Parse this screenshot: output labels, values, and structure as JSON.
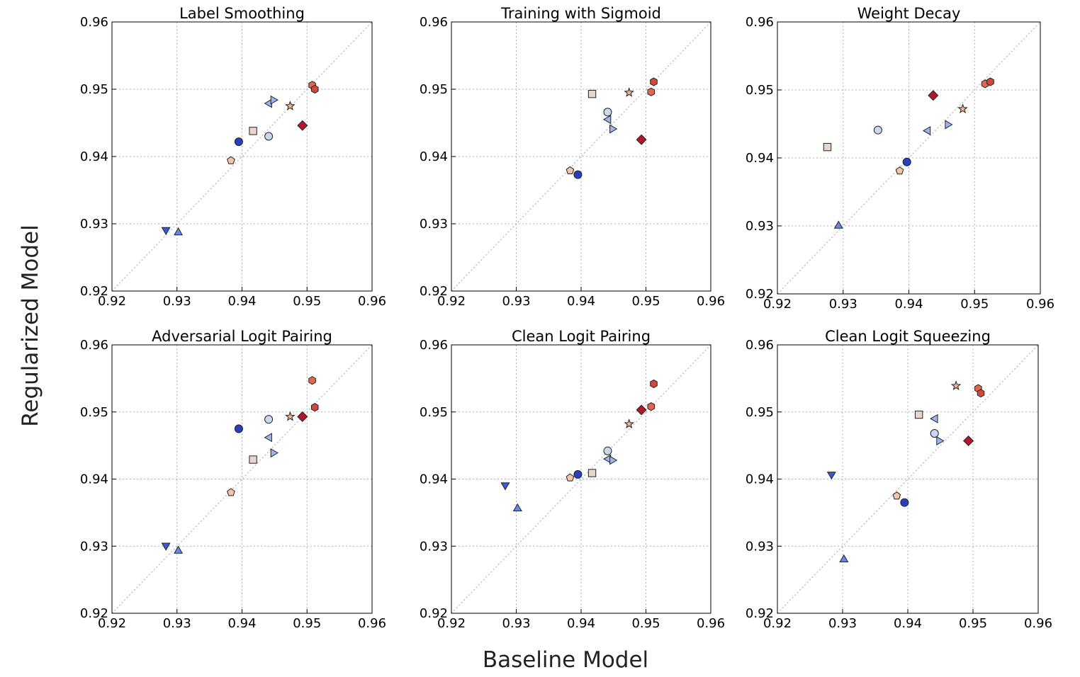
{
  "figure": {
    "xlabel": "Baseline Model",
    "ylabel": "Regularized Model"
  },
  "chart_data": [
    {
      "type": "scatter",
      "title": "Label Smoothing",
      "xlim": [
        0.92,
        0.96
      ],
      "ylim": [
        0.92,
        0.96
      ],
      "xticks": [
        "0.92",
        "0.93",
        "0.94",
        "0.95",
        "0.96"
      ],
      "yticks": [
        "0.92",
        "0.93",
        "0.94",
        "0.95",
        "0.96"
      ],
      "grid": true,
      "reference_line": "y = x",
      "points": [
        {
          "x": 0.9283,
          "y": 0.929,
          "marker": "triangle-down",
          "color": "#3b5bd6"
        },
        {
          "x": 0.9302,
          "y": 0.9288,
          "marker": "triangle-up",
          "color": "#6688e8"
        },
        {
          "x": 0.9383,
          "y": 0.9394,
          "marker": "pentagon",
          "color": "#f3c4a8"
        },
        {
          "x": 0.9395,
          "y": 0.9422,
          "marker": "circle",
          "color": "#2a3fc0"
        },
        {
          "x": 0.9417,
          "y": 0.9438,
          "marker": "square",
          "color": "#e8d6cc"
        },
        {
          "x": 0.9441,
          "y": 0.943,
          "marker": "circle",
          "color": "#c9d8f0"
        },
        {
          "x": 0.9441,
          "y": 0.9479,
          "marker": "triangle-left",
          "color": "#9db6f0"
        },
        {
          "x": 0.9449,
          "y": 0.9484,
          "marker": "triangle-right",
          "color": "#9db6f0"
        },
        {
          "x": 0.9474,
          "y": 0.9475,
          "marker": "star",
          "color": "#f0b592"
        },
        {
          "x": 0.9493,
          "y": 0.9446,
          "marker": "diamond",
          "color": "#b2182b"
        },
        {
          "x": 0.9508,
          "y": 0.9506,
          "marker": "hexagon",
          "color": "#e06850"
        },
        {
          "x": 0.9512,
          "y": 0.95,
          "marker": "hexagon",
          "color": "#d04a3c"
        }
      ]
    },
    {
      "type": "scatter",
      "title": "Training with Sigmoid",
      "xlim": [
        0.92,
        0.96
      ],
      "ylim": [
        0.92,
        0.96
      ],
      "xticks": [
        "0.92",
        "0.93",
        "0.94",
        "0.95",
        "0.96"
      ],
      "yticks": [
        "0.92",
        "0.93",
        "0.94",
        "0.95",
        "0.96"
      ],
      "grid": true,
      "reference_line": "y = x",
      "points": [
        {
          "x": 0.9383,
          "y": 0.9379,
          "marker": "pentagon",
          "color": "#f3c4a8"
        },
        {
          "x": 0.9395,
          "y": 0.9373,
          "marker": "circle",
          "color": "#2a3fc0"
        },
        {
          "x": 0.9417,
          "y": 0.9493,
          "marker": "square",
          "color": "#e8d6cc"
        },
        {
          "x": 0.9441,
          "y": 0.9466,
          "marker": "circle",
          "color": "#c9d8f0"
        },
        {
          "x": 0.9441,
          "y": 0.9455,
          "marker": "triangle-left",
          "color": "#9db6f0"
        },
        {
          "x": 0.9449,
          "y": 0.9441,
          "marker": "triangle-right",
          "color": "#9db6f0"
        },
        {
          "x": 0.9474,
          "y": 0.9495,
          "marker": "star",
          "color": "#f0b592"
        },
        {
          "x": 0.9493,
          "y": 0.9425,
          "marker": "diamond",
          "color": "#b2182b"
        },
        {
          "x": 0.9508,
          "y": 0.9496,
          "marker": "hexagon",
          "color": "#e06850"
        },
        {
          "x": 0.9512,
          "y": 0.9511,
          "marker": "hexagon",
          "color": "#d04a3c"
        }
      ]
    },
    {
      "type": "scatter",
      "title": "Weight Decay",
      "xlim": [
        0.92,
        0.96
      ],
      "ylim": [
        0.92,
        0.96
      ],
      "xticks": [
        "0.92",
        "0.93",
        "0.94",
        "0.95",
        "0.96"
      ],
      "yticks": [
        "0.92",
        "0.93",
        "0.94",
        "0.95",
        "0.96"
      ],
      "grid": true,
      "reference_line": "y = x",
      "points": [
        {
          "x": 0.9276,
          "y": 0.9416,
          "marker": "square",
          "color": "#e8d6cc"
        },
        {
          "x": 0.9293,
          "y": 0.9301,
          "marker": "triangle-up",
          "color": "#6688e8"
        },
        {
          "x": 0.9353,
          "y": 0.9441,
          "marker": "circle",
          "color": "#c9d8f0"
        },
        {
          "x": 0.9386,
          "y": 0.9381,
          "marker": "pentagon",
          "color": "#f3c4a8"
        },
        {
          "x": 0.9397,
          "y": 0.9394,
          "marker": "circle",
          "color": "#2a3fc0"
        },
        {
          "x": 0.9428,
          "y": 0.944,
          "marker": "triangle-left",
          "color": "#9db6f0"
        },
        {
          "x": 0.9437,
          "y": 0.9492,
          "marker": "diamond",
          "color": "#b2182b"
        },
        {
          "x": 0.946,
          "y": 0.9449,
          "marker": "triangle-right",
          "color": "#9db6f0"
        },
        {
          "x": 0.9482,
          "y": 0.9472,
          "marker": "star",
          "color": "#f0b592"
        },
        {
          "x": 0.9516,
          "y": 0.9509,
          "marker": "hexagon",
          "color": "#e06850"
        },
        {
          "x": 0.9524,
          "y": 0.9512,
          "marker": "hexagon",
          "color": "#d04a3c"
        }
      ]
    },
    {
      "type": "scatter",
      "title": "Adversarial Logit Pairing",
      "xlim": [
        0.92,
        0.96
      ],
      "ylim": [
        0.92,
        0.96
      ],
      "xticks": [
        "0.92",
        "0.93",
        "0.94",
        "0.95",
        "0.96"
      ],
      "yticks": [
        "0.92",
        "0.93",
        "0.94",
        "0.95",
        "0.96"
      ],
      "grid": true,
      "reference_line": "y = x",
      "points": [
        {
          "x": 0.9283,
          "y": 0.93,
          "marker": "triangle-down",
          "color": "#3b5bd6"
        },
        {
          "x": 0.9302,
          "y": 0.9294,
          "marker": "triangle-up",
          "color": "#6688e8"
        },
        {
          "x": 0.9383,
          "y": 0.938,
          "marker": "pentagon",
          "color": "#f3c4a8"
        },
        {
          "x": 0.9395,
          "y": 0.9475,
          "marker": "circle",
          "color": "#2a3fc0"
        },
        {
          "x": 0.9417,
          "y": 0.9429,
          "marker": "square",
          "color": "#e8d6cc"
        },
        {
          "x": 0.9441,
          "y": 0.9489,
          "marker": "circle",
          "color": "#c9d8f0"
        },
        {
          "x": 0.9441,
          "y": 0.9462,
          "marker": "triangle-left",
          "color": "#9db6f0"
        },
        {
          "x": 0.9449,
          "y": 0.9439,
          "marker": "triangle-right",
          "color": "#9db6f0"
        },
        {
          "x": 0.9474,
          "y": 0.9493,
          "marker": "star",
          "color": "#f0b592"
        },
        {
          "x": 0.9493,
          "y": 0.9493,
          "marker": "diamond",
          "color": "#b2182b"
        },
        {
          "x": 0.9508,
          "y": 0.9547,
          "marker": "hexagon",
          "color": "#e06850"
        },
        {
          "x": 0.9512,
          "y": 0.9507,
          "marker": "hexagon",
          "color": "#d04a3c"
        }
      ]
    },
    {
      "type": "scatter",
      "title": "Clean Logit Pairing",
      "xlim": [
        0.92,
        0.96
      ],
      "ylim": [
        0.92,
        0.96
      ],
      "xticks": [
        "0.92",
        "0.93",
        "0.94",
        "0.95",
        "0.96"
      ],
      "yticks": [
        "0.92",
        "0.93",
        "0.94",
        "0.95",
        "0.96"
      ],
      "grid": true,
      "reference_line": "y = x",
      "points": [
        {
          "x": 0.9283,
          "y": 0.939,
          "marker": "triangle-down",
          "color": "#3b5bd6"
        },
        {
          "x": 0.9302,
          "y": 0.9357,
          "marker": "triangle-up",
          "color": "#6688e8"
        },
        {
          "x": 0.9383,
          "y": 0.9402,
          "marker": "pentagon",
          "color": "#f3c4a8"
        },
        {
          "x": 0.9395,
          "y": 0.9407,
          "marker": "circle",
          "color": "#2a3fc0"
        },
        {
          "x": 0.9417,
          "y": 0.9409,
          "marker": "square",
          "color": "#e8d6cc"
        },
        {
          "x": 0.9441,
          "y": 0.9442,
          "marker": "circle",
          "color": "#c9d8f0"
        },
        {
          "x": 0.9441,
          "y": 0.943,
          "marker": "triangle-left",
          "color": "#9db6f0"
        },
        {
          "x": 0.9449,
          "y": 0.9428,
          "marker": "triangle-right",
          "color": "#9db6f0"
        },
        {
          "x": 0.9474,
          "y": 0.9482,
          "marker": "star",
          "color": "#f0b592"
        },
        {
          "x": 0.9493,
          "y": 0.9503,
          "marker": "diamond",
          "color": "#b2182b"
        },
        {
          "x": 0.9508,
          "y": 0.9508,
          "marker": "hexagon",
          "color": "#e06850"
        },
        {
          "x": 0.9512,
          "y": 0.9542,
          "marker": "hexagon",
          "color": "#d04a3c"
        }
      ]
    },
    {
      "type": "scatter",
      "title": "Clean Logit Squeezing",
      "xlim": [
        0.92,
        0.96
      ],
      "ylim": [
        0.92,
        0.96
      ],
      "xticks": [
        "0.92",
        "0.93",
        "0.94",
        "0.95",
        "0.96"
      ],
      "yticks": [
        "0.92",
        "0.93",
        "0.94",
        "0.95",
        "0.96"
      ],
      "grid": true,
      "reference_line": "y = x",
      "points": [
        {
          "x": 0.9283,
          "y": 0.9406,
          "marker": "triangle-down",
          "color": "#3b5bd6"
        },
        {
          "x": 0.9302,
          "y": 0.9281,
          "marker": "triangle-up",
          "color": "#6688e8"
        },
        {
          "x": 0.9383,
          "y": 0.9375,
          "marker": "pentagon",
          "color": "#f3c4a8"
        },
        {
          "x": 0.9395,
          "y": 0.9365,
          "marker": "circle",
          "color": "#2a3fc0"
        },
        {
          "x": 0.9417,
          "y": 0.9496,
          "marker": "square",
          "color": "#e8d6cc"
        },
        {
          "x": 0.9441,
          "y": 0.9468,
          "marker": "circle",
          "color": "#c9d8f0"
        },
        {
          "x": 0.9441,
          "y": 0.949,
          "marker": "triangle-left",
          "color": "#9db6f0"
        },
        {
          "x": 0.9449,
          "y": 0.9457,
          "marker": "triangle-right",
          "color": "#9db6f0"
        },
        {
          "x": 0.9474,
          "y": 0.9539,
          "marker": "star",
          "color": "#f0b592"
        },
        {
          "x": 0.9493,
          "y": 0.9457,
          "marker": "diamond",
          "color": "#b2182b"
        },
        {
          "x": 0.9508,
          "y": 0.9535,
          "marker": "hexagon",
          "color": "#e06850"
        },
        {
          "x": 0.9512,
          "y": 0.9528,
          "marker": "hexagon",
          "color": "#d04a3c"
        }
      ]
    }
  ]
}
